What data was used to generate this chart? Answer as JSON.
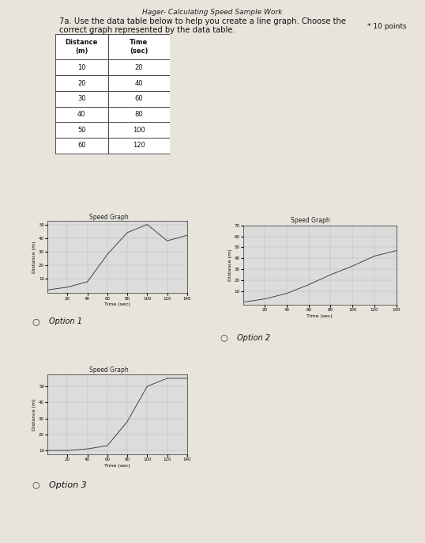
{
  "title": "Hager- Calculating Speed Sample Work",
  "question_line1": "7a. Use the data table below to help you create a line graph. Choose the",
  "question_line2": "correct graph represented by the data table.",
  "points_text": "* 10 points",
  "table_headers": [
    "Distance\n(m)",
    "Time\n(sec)"
  ],
  "table_distance": [
    10,
    20,
    30,
    40,
    50,
    60
  ],
  "table_time": [
    20,
    40,
    60,
    80,
    100,
    120
  ],
  "option1_title": "Speed Graph",
  "option1_xlabel": "Time (sec)",
  "option1_ylabel": "Distance (m)",
  "option1_x": [
    0,
    20,
    40,
    60,
    80,
    100,
    120,
    140
  ],
  "option1_y": [
    2,
    4,
    8,
    28,
    44,
    50,
    38,
    42
  ],
  "option1_xticks": [
    20,
    40,
    60,
    80,
    100,
    120,
    140
  ],
  "option1_yticks": [
    10,
    20,
    30,
    40,
    50
  ],
  "option1_label": "Option 1",
  "option2_title": "Speed Graph",
  "option2_xlabel": "Time (sec)",
  "option2_ylabel": "Distance (m)",
  "option2_x": [
    0,
    20,
    40,
    60,
    80,
    100,
    120,
    140
  ],
  "option2_y": [
    0,
    3,
    8,
    16,
    25,
    33,
    42,
    47
  ],
  "option2_xticks": [
    20,
    40,
    60,
    80,
    100,
    120,
    140
  ],
  "option2_yticks": [
    10,
    20,
    30,
    40,
    50,
    60,
    70
  ],
  "option2_label": "Option 2",
  "option3_title": "Speed Graph",
  "option3_xlabel": "Time (sec)",
  "option3_ylabel": "Distance (m)",
  "option3_x": [
    0,
    20,
    40,
    60,
    80,
    100,
    120,
    140
  ],
  "option3_y": [
    10,
    10,
    11,
    13,
    28,
    50,
    55,
    55
  ],
  "option3_xticks": [
    20,
    40,
    60,
    80,
    100,
    120,
    140
  ],
  "option3_yticks": [
    10,
    20,
    30,
    40,
    50
  ],
  "option3_label": "Option 3",
  "bg_color": "#e8e4dc",
  "plot_bg": "#dcdcdc",
  "plot_border_bg": "#f5f5f5",
  "line_color": "#444444",
  "grid_color": "#bbbbbb",
  "fig_width": 5.38,
  "fig_height": 6.86,
  "dpi": 100
}
